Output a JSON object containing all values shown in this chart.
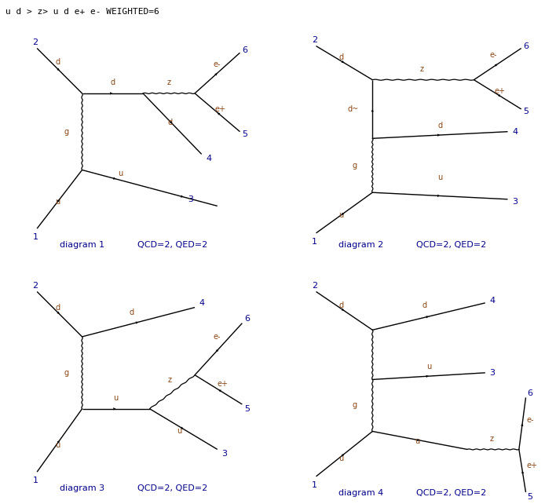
{
  "title": "u d > z> u d e+ e- WEIGHTED=6",
  "title_color": "#000000",
  "title_fontsize": 8,
  "bg_color": "#ffffff",
  "fermion_color": "#000000",
  "gluon_color": "#000000",
  "z_color": "#000000",
  "label_fermion_color": "#8B4513",
  "label_number_color": "#00008B",
  "diagram_label_color": "#00008B",
  "qcd_qed_color": "#00008B",
  "diagrams": [
    {
      "label": "diagram 1",
      "qcd_qed": "QCD=2, QED=2"
    },
    {
      "label": "diagram 2",
      "qcd_qed": "QCD=2, QED=2"
    },
    {
      "label": "diagram 3",
      "qcd_qed": "QCD=2, QED=2"
    },
    {
      "label": "diagram 4",
      "qcd_qed": "QCD=2, QED=2"
    }
  ]
}
